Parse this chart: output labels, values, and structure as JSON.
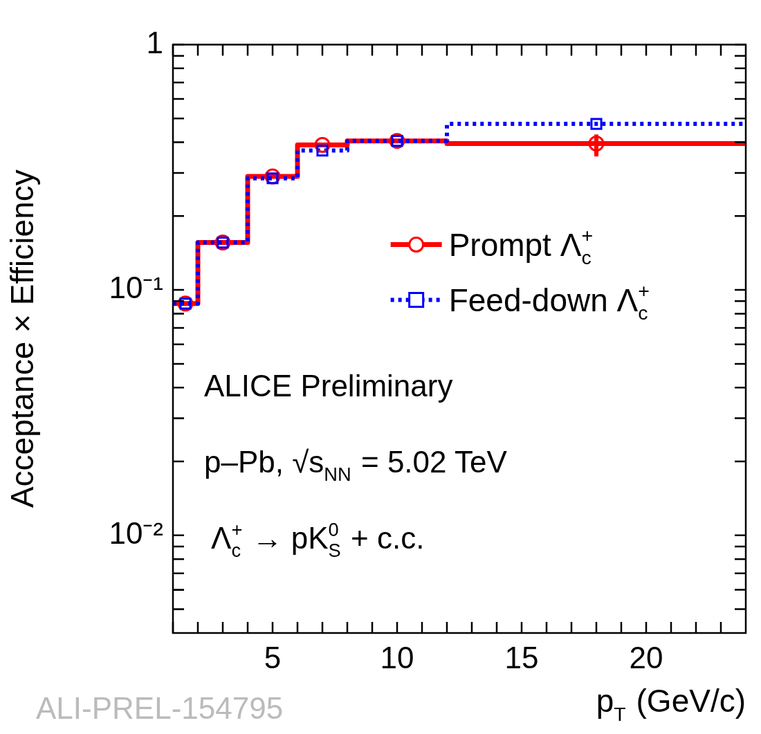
{
  "chart_data": {
    "type": "step",
    "xlabel": "p$_{T}$ (GeV/c)",
    "ylabel": "Acceptance × Efficiency",
    "series": [
      {
        "name": "Prompt Λ$_{c}$$^{+}$",
        "color": "#ff0000",
        "x": [
          1,
          2,
          4,
          6,
          8,
          12,
          24
        ],
        "values": [
          0.088,
          0.156,
          0.29,
          0.39,
          0.405,
          0.395,
          0.395
        ],
        "line_style": "solid",
        "marker": "none"
      },
      {
        "name": "Feed-down Λ$_{c}$$^{+}$",
        "color": "#0000ff",
        "x": [
          1,
          2,
          4,
          6,
          8,
          12,
          24
        ],
        "values": [
          0.088,
          0.156,
          0.285,
          0.37,
          0.405,
          0.475,
          0.475
        ],
        "line_style": "dotted",
        "marker": "none"
      },
      {
        "type": "scatter",
        "color": "#ff0000",
        "x": [
          1.5,
          3,
          5,
          7,
          10,
          18
        ],
        "values": [
          0.088,
          0.156,
          0.29,
          0.39,
          0.405,
          0.395
        ],
        "errors": [
          null,
          null,
          null,
          null,
          null,
          [
            0.35,
            0.43
          ]
        ],
        "marker": "circle"
      },
      {
        "type": "scatter",
        "color": "#0000ff",
        "x": [
          1.5,
          3,
          5,
          7,
          10,
          18
        ],
        "values": [
          0.088,
          0.156,
          0.285,
          0.37,
          0.405,
          0.475
        ],
        "marker": "square"
      }
    ],
    "log": "y",
    "xlim": [
      1,
      24
    ],
    "ylim": [
      0.004,
      1
    ],
    "xticks": [
      {
        "value": 1,
        "label": null
      },
      {
        "value": 2,
        "label": null
      },
      {
        "value": 3,
        "label": null
      },
      {
        "value": 4,
        "label": null
      },
      5,
      {
        "value": 6,
        "label": null
      },
      {
        "value": 7,
        "label": null
      },
      {
        "value": 8,
        "label": null
      },
      {
        "value": 9,
        "label": null
      },
      10,
      {
        "value": 11,
        "label": null
      },
      {
        "value": 12,
        "label": null
      },
      {
        "value": 13,
        "label": null
      },
      {
        "value": 14,
        "label": null
      },
      15,
      {
        "value": 16,
        "label": null
      },
      {
        "value": 17,
        "label": null
      },
      {
        "value": 18,
        "label": null
      },
      {
        "value": 19,
        "label": null
      },
      20,
      {
        "value": 21,
        "label": null
      },
      {
        "value": 22,
        "label": null
      },
      {
        "value": 23,
        "label": null
      }
    ],
    "yticks": [
      {
        "value": 0.005,
        "label": null
      },
      {
        "value": 0.006,
        "label": null
      },
      {
        "value": 0.007,
        "label": null
      },
      {
        "value": 0.008,
        "label": null
      },
      {
        "value": 0.009,
        "label": null
      },
      {
        "value": 0.01,
        "label": "10⁻²"
      },
      {
        "value": 0.02,
        "label": null
      },
      {
        "value": 0.03,
        "label": null
      },
      {
        "value": 0.04,
        "label": null
      },
      {
        "value": 0.05,
        "label": null
      },
      {
        "value": 0.06,
        "label": null
      },
      {
        "value": 0.07,
        "label": null
      },
      {
        "value": 0.08,
        "label": null
      },
      {
        "value": 0.09,
        "label": null
      },
      {
        "value": 0.1,
        "label": "10⁻¹"
      },
      {
        "value": 0.2,
        "label": null
      },
      {
        "value": 0.3,
        "label": null
      },
      {
        "value": 0.4,
        "label": null
      },
      {
        "value": 0.5,
        "label": null
      },
      {
        "value": 0.6,
        "label": null
      },
      {
        "value": 0.7,
        "label": null
      },
      {
        "value": 0.8,
        "label": null
      },
      {
        "value": 0.9,
        "label": null
      },
      1
    ],
    "grid": false,
    "legend": "right",
    "annotations": [
      "ALICE Preliminary",
      "p–Pb, √s$_{NN}$ = 5.02 TeV",
      "Λ$_{c}$$^{+}$ → pK$_{S}$$^{0}$ + c.c.",
      "ALI-PREL-154795"
    ]
  }
}
